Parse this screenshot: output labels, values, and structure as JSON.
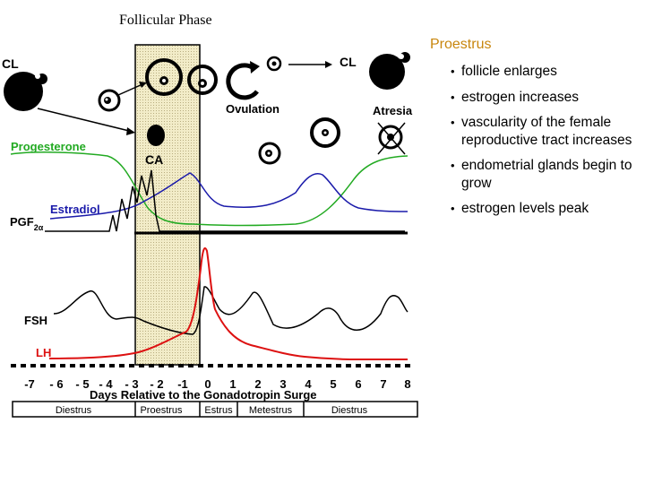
{
  "title": "Follicular Phase",
  "labels": {
    "cl_left": "CL",
    "cl_right": "CL",
    "ovulation": "Ovulation",
    "atresia": "Atresia",
    "ca": "CA",
    "progesterone": "Progesterone",
    "estradiol": "Estradiol",
    "pgf": "PGF",
    "pgf_sub": "2α",
    "fsh": "FSH",
    "lh": "LH",
    "x_axis_title": "Days Relative to the Gonadotropin Surge"
  },
  "x_ticks": [
    "-7",
    "- 6",
    "- 5",
    "- 4",
    "- 3",
    "- 2",
    "-1",
    "0",
    "1",
    "2",
    "3",
    "4",
    "5",
    "6",
    "7",
    "8"
  ],
  "stages": [
    "Diestrus",
    "Proestrus",
    "Estrus",
    "Metestrus",
    "Diestrus"
  ],
  "side_panel": {
    "heading": "Proestrus",
    "items": [
      "follicle enlarges",
      "estrogen increases",
      "vascularity of the female reproductive tract increases",
      "endometrial glands begin to grow",
      "estrogen levels peak"
    ]
  },
  "colors": {
    "heading": "#c8860d",
    "progesterone": "#22aa22",
    "estradiol": "#1a1aaa",
    "lh": "#dd1111",
    "fsh": "#000000",
    "highlight": "#efe6b8"
  }
}
